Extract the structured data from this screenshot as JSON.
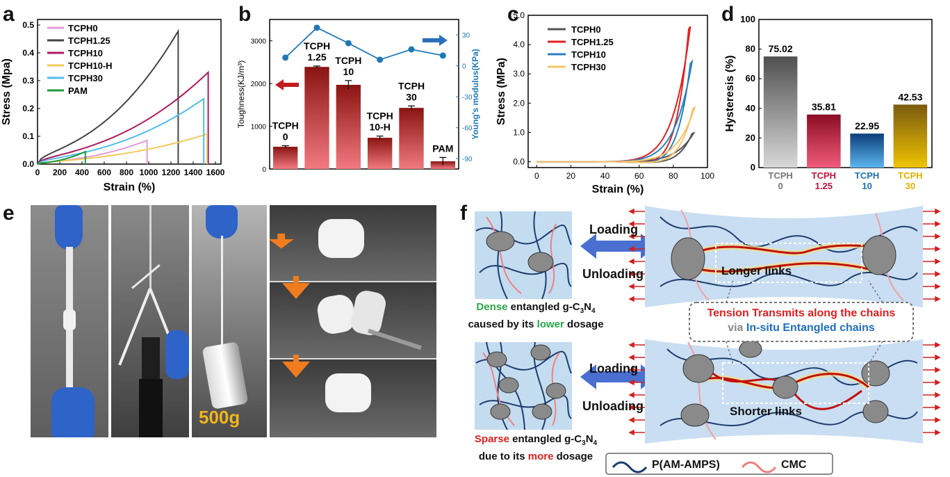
{
  "panels": {
    "a": {
      "letter": "a"
    },
    "b": {
      "letter": "b"
    },
    "c": {
      "letter": "c"
    },
    "d": {
      "letter": "d"
    },
    "e": {
      "letter": "e"
    },
    "f": {
      "letter": "f"
    }
  },
  "chart_data": [
    {
      "panel": "a",
      "type": "line",
      "xlabel": "Strain (%)",
      "ylabel": "Stress (Mpa)",
      "xlim": [
        0,
        1650
      ],
      "ylim": [
        0,
        0.52
      ],
      "xticks": [
        0,
        200,
        400,
        600,
        800,
        1000,
        1200,
        1400,
        1600
      ],
      "yticks": [
        0.0,
        0.1,
        0.2,
        0.3,
        0.4,
        0.5
      ],
      "legend_position": "top-left",
      "series": [
        {
          "name": "TCPH0",
          "color": "#e39ad8",
          "break_x": 985,
          "break_y": 0.085
        },
        {
          "name": "TCPH1.25",
          "color": "#444444",
          "break_x": 1265,
          "break_y": 0.478
        },
        {
          "name": "TCPH10",
          "color": "#b0185f",
          "break_x": 1535,
          "break_y": 0.33
        },
        {
          "name": "TCPH10-H",
          "color": "#f1c95a",
          "break_x": 1525,
          "break_y": 0.108
        },
        {
          "name": "TCPH30",
          "color": "#52bde8",
          "break_x": 1495,
          "break_y": 0.235
        },
        {
          "name": "PAM",
          "color": "#1f9a3a",
          "break_x": 430,
          "break_y": 0.045
        }
      ]
    },
    {
      "panel": "b",
      "type": "bar",
      "ylabel": "Toughness(KJ/m³)",
      "y2label": "Young's modulus(KPa)",
      "ylim": [
        0,
        3500
      ],
      "y2lim": [
        -100,
        45
      ],
      "yticks": [
        0,
        1000,
        2000,
        3000
      ],
      "y2ticks": [
        -90,
        -60,
        -30,
        0,
        30
      ],
      "categories": [
        {
          "line1": "TCPH",
          "line2": "0"
        },
        {
          "line1": "TCPH",
          "line2": "1.25"
        },
        {
          "line1": "TCPH",
          "line2": "10"
        },
        {
          "line1": "TCPH",
          "line2": "10-H"
        },
        {
          "line1": "TCPH",
          "line2": "30"
        },
        {
          "line1": "PAM",
          "line2": ""
        }
      ],
      "values": [
        520,
        2390,
        1970,
        730,
        1430,
        180
      ],
      "errors": [
        25,
        20,
        100,
        40,
        45,
        90
      ],
      "modulus": [
        8,
        37,
        22,
        6,
        16,
        10
      ],
      "bar_color_top": "#8a1412",
      "bar_color_bottom": "#f27a80",
      "modulus_color": "#1f77b4"
    },
    {
      "panel": "c",
      "type": "line",
      "xlabel": "Strain (%)",
      "ylabel": "Stress (MPa)",
      "xlim": [
        -5,
        100
      ],
      "ylim": [
        -0.2,
        5.0
      ],
      "xticks": [
        0,
        20,
        40,
        60,
        80,
        100
      ],
      "yticks": [
        "0.0",
        "1.0",
        "2.0",
        "3.0",
        "4.0",
        "5.0"
      ],
      "legend_position": "top-left",
      "series": [
        {
          "name": "TCPH0",
          "color": "#555555",
          "peak_x": 92,
          "peak_y": 0.98
        },
        {
          "name": "TCPH1.25",
          "color": "#e02020",
          "peak_x": 90,
          "peak_y": 4.62
        },
        {
          "name": "TCPH10",
          "color": "#2a7fc0",
          "peak_x": 91,
          "peak_y": 3.42
        },
        {
          "name": "TCPH30",
          "color": "#f5c46a",
          "peak_x": 92.5,
          "peak_y": 1.85
        }
      ]
    },
    {
      "panel": "d",
      "type": "bar",
      "ylabel": "Hysteresis (%)",
      "ylim": [
        0,
        100
      ],
      "yticks": [
        0,
        20,
        40,
        60,
        80,
        100
      ],
      "categories": [
        {
          "line1": "TCPH",
          "line2": "0",
          "color": "#777777"
        },
        {
          "line1": "TCPH",
          "line2": "1.25",
          "color": "#c4123a"
        },
        {
          "line1": "TCPH",
          "line2": "10",
          "color": "#1f6fb4"
        },
        {
          "line1": "TCPH",
          "line2": "30",
          "color": "#e3b000"
        }
      ],
      "values": [
        75.02,
        35.81,
        22.95,
        42.53
      ],
      "value_labels": [
        "75.02",
        "35.81",
        "22.95",
        "42.53"
      ],
      "bar_colors": [
        {
          "top": "#505050",
          "bottom": "#d8d8d8"
        },
        {
          "top": "#8a0d24",
          "bottom": "#f25c7a"
        },
        {
          "top": "#0d3f7a",
          "bottom": "#5cb6f0"
        },
        {
          "top": "#7a5a10",
          "bottom": "#f0c400"
        }
      ]
    }
  ],
  "panel_e": {
    "weight_label": "500g"
  },
  "panel_f": {
    "loading": "Loading",
    "unloading": "Unloading",
    "longer_links": "Longer links",
    "shorter_links": "Shorter links",
    "dense_word": "Dense",
    "dense_rest": " entangled g-C",
    "sub3": "3",
    "n": "N",
    "sub4": "4",
    "dense_line2_a": "caused by its ",
    "dense_line2_b": "lower",
    "dense_line2_c": " dosage",
    "sparse_word": "Sparse",
    "sparse_line2_a": "due to its ",
    "sparse_line2_b": "more",
    "sparse_line2_c": " dosage",
    "tension_line": "Tension Transmits along the chains",
    "via": "via ",
    "insitu": "In-situ Entangled chains",
    "legend_pam": "P(AM-AMPS)",
    "legend_cmc": "CMC",
    "colors": {
      "green": "#2aa84a",
      "red": "#e02020",
      "blue": "#1d6fc0",
      "gray": "#888888"
    }
  }
}
